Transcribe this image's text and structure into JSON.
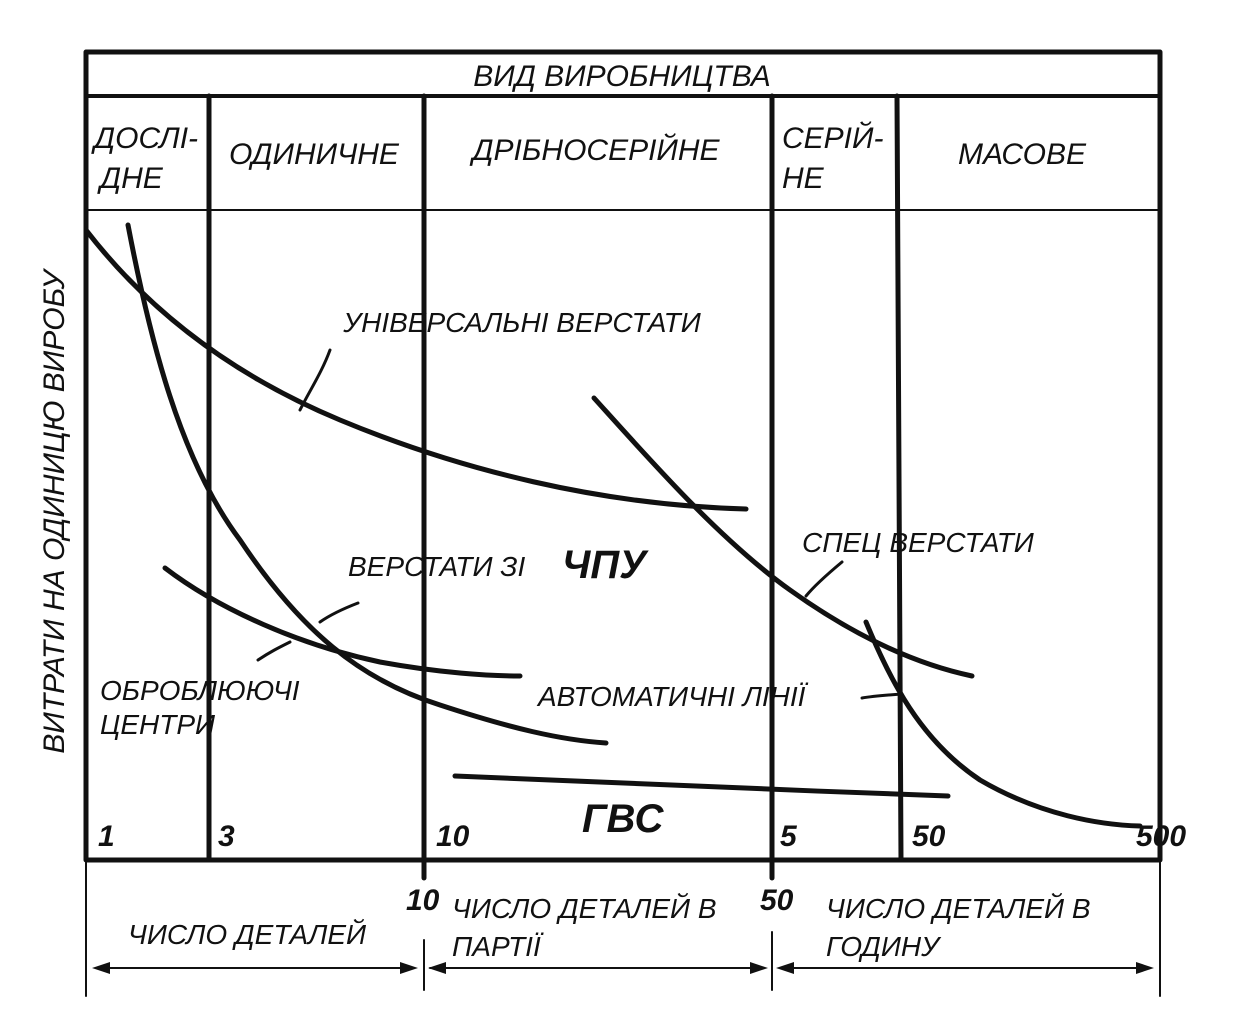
{
  "header": {
    "title": "ВИД ВИРОБНИЦТВА"
  },
  "columns": [
    {
      "line1": "ДОСЛІ-",
      "line2": "ДНЕ"
    },
    {
      "line1": "ОДИНИЧНЕ",
      "line2": ""
    },
    {
      "line1": "ДРІБНОСЕРІЙНЕ",
      "line2": ""
    },
    {
      "line1": "СЕРІЙ-",
      "line2": "НЕ"
    },
    {
      "line1": "МАСОВЕ",
      "line2": ""
    }
  ],
  "y_axis_label": "ВИТРАТИ НА ОДИНИЦЮ ВИРОБУ",
  "curves": {
    "universal": "УНІВЕРСАЛЬНІ ВЕРСТАТИ",
    "cnc_part1": "ВЕРСТАТИ ЗІ",
    "cnc_part2": "ЧПУ",
    "machining_line1": "ОБРОБЛЮЮЧІ",
    "machining_line2": "ЦЕНТРИ",
    "special": "СПЕЦ ВЕРСТАТИ",
    "auto_lines": "АВТОМАТИЧНІ ЛІНІЇ",
    "fms": "ГВС"
  },
  "tick_numbers": [
    "1",
    "3",
    "10",
    "5",
    "50",
    "500"
  ],
  "bottom": {
    "boundary_1": "10",
    "boundary_2": "50",
    "left_label": "ЧИСЛО ДЕТАЛЕЙ",
    "mid_line1": "ЧИСЛО ДЕТАЛЕЙ В",
    "mid_line2": "ПАРТІЇ",
    "right_line1": "ЧИСЛО ДЕТАЛЕЙ В",
    "right_line2": "ГОДИНУ"
  }
}
